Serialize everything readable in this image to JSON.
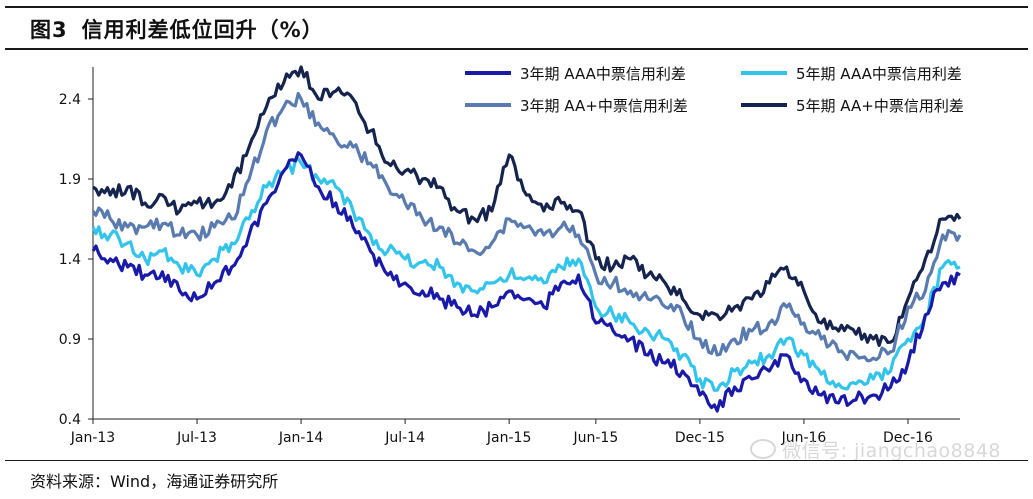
{
  "header": {
    "figure_label": "图3",
    "title": "信用利差低位回升（%）"
  },
  "source": {
    "text": "资料来源：Wind，海通证券研究所"
  },
  "watermark": {
    "text": "微信号: jiangchao8848",
    "icon": "wechat-icon"
  },
  "chart_data": {
    "type": "line",
    "title": "信用利差低位回升（%）",
    "xlabel": "",
    "ylabel": "",
    "ylim": [
      0.4,
      2.6
    ],
    "y_ticks": [
      "0.4",
      "0.9",
      "1.4",
      "1.9",
      "2.4"
    ],
    "x_ticks": [
      "Jan-13",
      "Jul-13",
      "Jan-14",
      "Jul-14",
      "Jan-15",
      "Jun-15",
      "Dec-15",
      "Jun-16",
      "Dec-16"
    ],
    "x_tick_dates": [
      "2013-01",
      "2013-07",
      "2014-01",
      "2014-07",
      "2015-01",
      "2015-06",
      "2015-12",
      "2016-06",
      "2016-12"
    ],
    "xlim": [
      "2013-01",
      "2017-03"
    ],
    "grid": false,
    "legend_position": "top-right",
    "series": [
      {
        "name": "3年期 AAA中票信用利差",
        "color": "#1a1aa8",
        "dates": [
          "2013-01",
          "2013-02",
          "2013-03",
          "2013-04",
          "2013-05",
          "2013-06",
          "2013-07",
          "2013-08",
          "2013-09",
          "2013-10",
          "2013-11",
          "2013-12",
          "2014-01",
          "2014-02",
          "2014-03",
          "2014-04",
          "2014-05",
          "2014-06",
          "2014-07",
          "2014-08",
          "2014-09",
          "2014-10",
          "2014-11",
          "2014-12",
          "2015-01",
          "2015-02",
          "2015-03",
          "2015-04",
          "2015-05",
          "2015-06",
          "2015-07",
          "2015-08",
          "2015-09",
          "2015-10",
          "2015-11",
          "2015-12",
          "2016-01",
          "2016-02",
          "2016-03",
          "2016-04",
          "2016-05",
          "2016-06",
          "2016-07",
          "2016-08",
          "2016-09",
          "2016-10",
          "2016-11",
          "2016-12",
          "2017-01",
          "2017-02",
          "2017-03"
        ],
        "values": [
          1.45,
          1.4,
          1.35,
          1.3,
          1.32,
          1.2,
          1.15,
          1.25,
          1.35,
          1.55,
          1.75,
          1.95,
          2.05,
          1.85,
          1.75,
          1.6,
          1.45,
          1.3,
          1.25,
          1.2,
          1.15,
          1.1,
          1.05,
          1.1,
          1.2,
          1.15,
          1.1,
          1.25,
          1.3,
          1.0,
          0.95,
          0.9,
          0.8,
          0.75,
          0.7,
          0.55,
          0.45,
          0.6,
          0.65,
          0.7,
          0.8,
          0.65,
          0.55,
          0.5,
          0.52,
          0.55,
          0.6,
          0.75,
          1.05,
          1.25,
          1.3
        ]
      },
      {
        "name": "5年期 AAA中票信用利差",
        "color": "#33c4ec",
        "dates": [
          "2013-01",
          "2013-02",
          "2013-03",
          "2013-04",
          "2013-05",
          "2013-06",
          "2013-07",
          "2013-08",
          "2013-09",
          "2013-10",
          "2013-11",
          "2013-12",
          "2014-01",
          "2014-02",
          "2014-03",
          "2014-04",
          "2014-05",
          "2014-06",
          "2014-07",
          "2014-08",
          "2014-09",
          "2014-10",
          "2014-11",
          "2014-12",
          "2015-01",
          "2015-02",
          "2015-03",
          "2015-04",
          "2015-05",
          "2015-06",
          "2015-07",
          "2015-08",
          "2015-09",
          "2015-10",
          "2015-11",
          "2015-12",
          "2016-01",
          "2016-02",
          "2016-03",
          "2016-04",
          "2016-05",
          "2016-06",
          "2016-07",
          "2016-08",
          "2016-09",
          "2016-10",
          "2016-11",
          "2016-12",
          "2017-01",
          "2017-02",
          "2017-03"
        ],
        "values": [
          1.6,
          1.55,
          1.5,
          1.4,
          1.45,
          1.35,
          1.3,
          1.4,
          1.5,
          1.65,
          1.85,
          1.95,
          2.0,
          1.9,
          1.85,
          1.7,
          1.55,
          1.45,
          1.4,
          1.38,
          1.35,
          1.25,
          1.2,
          1.25,
          1.3,
          1.28,
          1.25,
          1.35,
          1.4,
          1.1,
          1.05,
          1.0,
          0.95,
          0.9,
          0.8,
          0.65,
          0.58,
          0.7,
          0.75,
          0.8,
          0.9,
          0.8,
          0.68,
          0.62,
          0.62,
          0.65,
          0.7,
          0.9,
          1.05,
          1.35,
          1.35
        ]
      },
      {
        "name": "3年期 AA+中票信用利差",
        "color": "#5a7bb0",
        "dates": [
          "2013-01",
          "2013-02",
          "2013-03",
          "2013-04",
          "2013-05",
          "2013-06",
          "2013-07",
          "2013-08",
          "2013-09",
          "2013-10",
          "2013-11",
          "2013-12",
          "2014-01",
          "2014-02",
          "2014-03",
          "2014-04",
          "2014-05",
          "2014-06",
          "2014-07",
          "2014-08",
          "2014-09",
          "2014-10",
          "2014-11",
          "2014-12",
          "2015-01",
          "2015-02",
          "2015-03",
          "2015-04",
          "2015-05",
          "2015-06",
          "2015-07",
          "2015-08",
          "2015-09",
          "2015-10",
          "2015-11",
          "2015-12",
          "2016-01",
          "2016-02",
          "2016-03",
          "2016-04",
          "2016-05",
          "2016-06",
          "2016-07",
          "2016-08",
          "2016-09",
          "2016-10",
          "2016-11",
          "2016-12",
          "2017-01",
          "2017-02",
          "2017-03"
        ],
        "values": [
          1.7,
          1.65,
          1.6,
          1.6,
          1.62,
          1.55,
          1.55,
          1.6,
          1.65,
          1.9,
          2.2,
          2.35,
          2.4,
          2.25,
          2.15,
          2.1,
          2.0,
          1.85,
          1.75,
          1.65,
          1.6,
          1.5,
          1.45,
          1.5,
          1.65,
          1.6,
          1.55,
          1.6,
          1.55,
          1.3,
          1.25,
          1.2,
          1.15,
          1.1,
          1.05,
          0.9,
          0.8,
          0.9,
          0.95,
          1.0,
          1.1,
          1.0,
          0.9,
          0.82,
          0.8,
          0.78,
          0.82,
          1.1,
          1.2,
          1.55,
          1.55
        ]
      },
      {
        "name": "5年期 AA+中票信用利差",
        "color": "#15234f",
        "dates": [
          "2013-01",
          "2013-02",
          "2013-03",
          "2013-04",
          "2013-05",
          "2013-06",
          "2013-07",
          "2013-08",
          "2013-09",
          "2013-10",
          "2013-11",
          "2013-12",
          "2014-01",
          "2014-02",
          "2014-03",
          "2014-04",
          "2014-05",
          "2014-06",
          "2014-07",
          "2014-08",
          "2014-09",
          "2014-10",
          "2014-11",
          "2014-12",
          "2015-01",
          "2015-02",
          "2015-03",
          "2015-04",
          "2015-05",
          "2015-06",
          "2015-07",
          "2015-08",
          "2015-09",
          "2015-10",
          "2015-11",
          "2015-12",
          "2016-01",
          "2016-02",
          "2016-03",
          "2016-04",
          "2016-05",
          "2016-06",
          "2016-07",
          "2016-08",
          "2016-09",
          "2016-10",
          "2016-11",
          "2016-12",
          "2017-01",
          "2017-02",
          "2017-03"
        ],
        "values": [
          1.85,
          1.8,
          1.85,
          1.75,
          1.8,
          1.7,
          1.75,
          1.75,
          1.85,
          2.1,
          2.35,
          2.5,
          2.6,
          2.4,
          2.45,
          2.4,
          2.2,
          2.0,
          1.95,
          1.9,
          1.85,
          1.7,
          1.65,
          1.7,
          2.05,
          1.8,
          1.7,
          1.75,
          1.7,
          1.4,
          1.35,
          1.4,
          1.3,
          1.25,
          1.15,
          1.05,
          1.05,
          1.1,
          1.15,
          1.25,
          1.35,
          1.2,
          1.0,
          0.95,
          0.93,
          0.9,
          0.88,
          1.15,
          1.4,
          1.65,
          1.65
        ]
      }
    ]
  }
}
